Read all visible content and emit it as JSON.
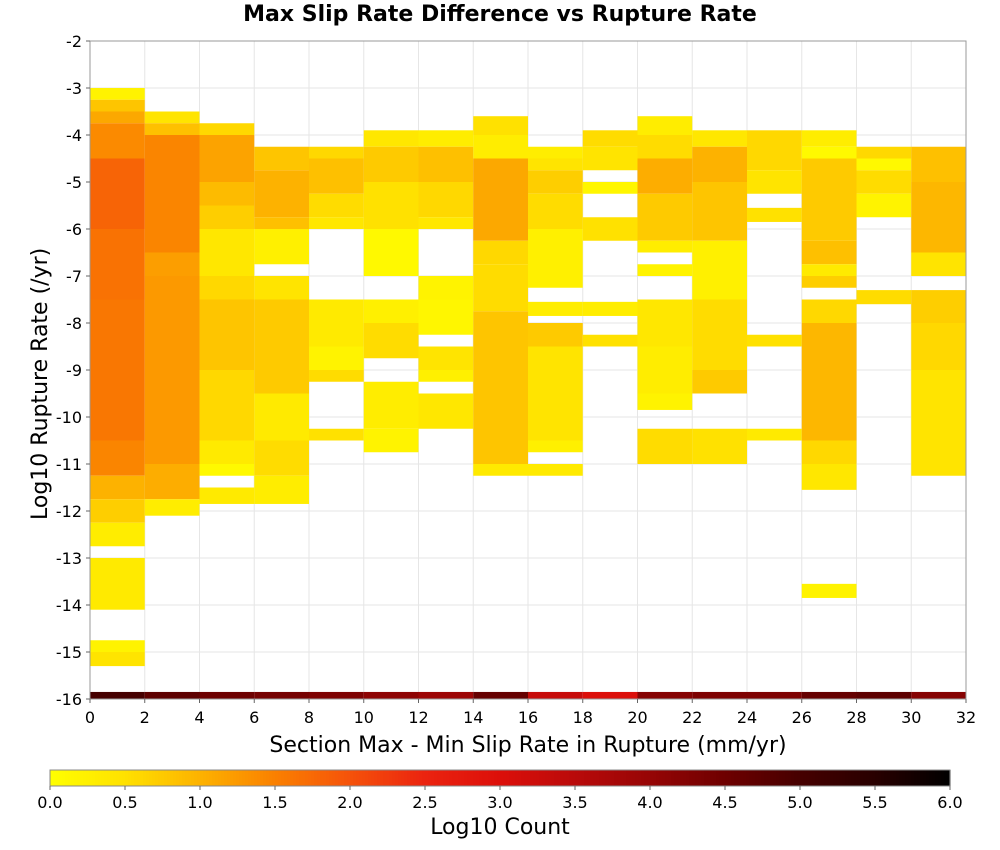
{
  "chart_data": {
    "type": "heatmap",
    "title": "Max Slip Rate Difference vs Rupture Rate",
    "xlabel": "Section Max - Min Slip Rate in Rupture (mm/yr)",
    "ylabel": "Log10 Rupture Rate (/yr)",
    "xlim": [
      0,
      32
    ],
    "ylim": [
      -16,
      -2
    ],
    "x_ticks": [
      "0",
      "2",
      "4",
      "6",
      "8",
      "10",
      "12",
      "14",
      "16",
      "18",
      "20",
      "22",
      "24",
      "26",
      "28",
      "30",
      "32"
    ],
    "y_ticks": [
      "-2",
      "-3",
      "-4",
      "-5",
      "-6",
      "-7",
      "-8",
      "-9",
      "-10",
      "-11",
      "-12",
      "-13",
      "-14",
      "-15",
      "-16"
    ],
    "x_bin_width": 2,
    "y_bin_height": 0.25,
    "colorbar": {
      "label": "Log10 Count",
      "range": [
        0,
        6
      ],
      "ticks": [
        "0.0",
        "0.5",
        "1.0",
        "1.5",
        "2.0",
        "2.5",
        "3.0",
        "3.5",
        "4.0",
        "4.5",
        "5.0",
        "5.5",
        "6.0"
      ]
    },
    "columns": [
      {
        "x": 1,
        "ranges": [
          {
            "y0": -3.25,
            "y1": -3.0,
            "v": 0.2
          },
          {
            "y0": -3.5,
            "y1": -3.25,
            "v": 0.8
          },
          {
            "y0": -3.75,
            "y1": -3.5,
            "v": 1.1
          },
          {
            "y0": -4.5,
            "y1": -3.75,
            "v": 1.4
          },
          {
            "y0": -6.0,
            "y1": -4.5,
            "v": 1.8
          },
          {
            "y0": -7.5,
            "y1": -6.0,
            "v": 1.65
          },
          {
            "y0": -10.5,
            "y1": -7.5,
            "v": 1.6
          },
          {
            "y0": -11.25,
            "y1": -10.5,
            "v": 1.45
          },
          {
            "y0": -11.75,
            "y1": -11.25,
            "v": 1.0
          },
          {
            "y0": -12.25,
            "y1": -11.75,
            "v": 0.7
          },
          {
            "y0": -12.75,
            "y1": -12.25,
            "v": 0.3
          },
          {
            "y0": -14.1,
            "y1": -13.0,
            "v": 0.35
          },
          {
            "y0": -15.0,
            "y1": -14.75,
            "v": 0.2
          },
          {
            "y0": -15.3,
            "y1": -15.0,
            "v": 0.45
          }
        ]
      },
      {
        "x": 3,
        "ranges": [
          {
            "y0": -3.75,
            "y1": -3.5,
            "v": 0.45
          },
          {
            "y0": -4.0,
            "y1": -3.75,
            "v": 0.85
          },
          {
            "y0": -6.5,
            "y1": -4.0,
            "v": 1.45
          },
          {
            "y0": -7.0,
            "y1": -6.5,
            "v": 1.2
          },
          {
            "y0": -11.0,
            "y1": -7.0,
            "v": 1.25
          },
          {
            "y0": -11.75,
            "y1": -11.0,
            "v": 1.05
          },
          {
            "y0": -12.1,
            "y1": -11.75,
            "v": 0.3
          }
        ]
      },
      {
        "x": 5,
        "ranges": [
          {
            "y0": -4.0,
            "y1": -3.75,
            "v": 0.6
          },
          {
            "y0": -5.0,
            "y1": -4.0,
            "v": 1.15
          },
          {
            "y0": -5.5,
            "y1": -5.0,
            "v": 0.9
          },
          {
            "y0": -6.0,
            "y1": -5.5,
            "v": 0.7
          },
          {
            "y0": -7.0,
            "y1": -6.0,
            "v": 0.4
          },
          {
            "y0": -7.5,
            "y1": -7.0,
            "v": 0.6
          },
          {
            "y0": -9.0,
            "y1": -7.5,
            "v": 0.8
          },
          {
            "y0": -10.5,
            "y1": -9.0,
            "v": 0.6
          },
          {
            "y0": -11.0,
            "y1": -10.5,
            "v": 0.35
          },
          {
            "y0": -11.25,
            "y1": -11.0,
            "v": 0.1
          },
          {
            "y0": -11.85,
            "y1": -11.5,
            "v": 0.35
          }
        ]
      },
      {
        "x": 7,
        "ranges": [
          {
            "y0": -4.75,
            "y1": -4.25,
            "v": 0.8
          },
          {
            "y0": -5.75,
            "y1": -4.75,
            "v": 1.0
          },
          {
            "y0": -6.0,
            "y1": -5.75,
            "v": 0.85
          },
          {
            "y0": -6.75,
            "y1": -6.0,
            "v": 0.25
          },
          {
            "y0": -7.5,
            "y1": -7.0,
            "v": 0.45
          },
          {
            "y0": -9.5,
            "y1": -7.5,
            "v": 0.75
          },
          {
            "y0": -10.5,
            "y1": -9.5,
            "v": 0.35
          },
          {
            "y0": -11.25,
            "y1": -10.5,
            "v": 0.55
          },
          {
            "y0": -11.85,
            "y1": -11.25,
            "v": 0.3
          }
        ]
      },
      {
        "x": 9,
        "ranges": [
          {
            "y0": -4.5,
            "y1": -4.25,
            "v": 0.6
          },
          {
            "y0": -5.25,
            "y1": -4.5,
            "v": 0.85
          },
          {
            "y0": -5.75,
            "y1": -5.25,
            "v": 0.55
          },
          {
            "y0": -6.0,
            "y1": -5.75,
            "v": 0.4
          },
          {
            "y0": -8.5,
            "y1": -7.5,
            "v": 0.35
          },
          {
            "y0": -9.0,
            "y1": -8.5,
            "v": 0.2
          },
          {
            "y0": -9.25,
            "y1": -9.0,
            "v": 0.55
          },
          {
            "y0": -10.5,
            "y1": -10.25,
            "v": 0.5
          }
        ]
      },
      {
        "x": 11,
        "ranges": [
          {
            "y0": -4.25,
            "y1": -3.9,
            "v": 0.4
          },
          {
            "y0": -5.0,
            "y1": -4.25,
            "v": 0.75
          },
          {
            "y0": -6.0,
            "y1": -5.0,
            "v": 0.5
          },
          {
            "y0": -7.0,
            "y1": -6.0,
            "v": 0.1
          },
          {
            "y0": -8.0,
            "y1": -7.5,
            "v": 0.25
          },
          {
            "y0": -8.75,
            "y1": -8.0,
            "v": 0.55
          },
          {
            "y0": -10.25,
            "y1": -9.25,
            "v": 0.3
          },
          {
            "y0": -10.75,
            "y1": -10.25,
            "v": 0.2
          }
        ]
      },
      {
        "x": 13,
        "ranges": [
          {
            "y0": -4.25,
            "y1": -3.9,
            "v": 0.3
          },
          {
            "y0": -5.0,
            "y1": -4.25,
            "v": 0.85
          },
          {
            "y0": -5.75,
            "y1": -5.0,
            "v": 0.6
          },
          {
            "y0": -6.0,
            "y1": -5.75,
            "v": 0.4
          },
          {
            "y0": -7.5,
            "y1": -7.0,
            "v": 0.2
          },
          {
            "y0": -8.25,
            "y1": -7.5,
            "v": 0.15
          },
          {
            "y0": -9.0,
            "y1": -8.5,
            "v": 0.45
          },
          {
            "y0": -9.25,
            "y1": -9.0,
            "v": 0.25
          },
          {
            "y0": -10.25,
            "y1": -9.5,
            "v": 0.4
          }
        ]
      },
      {
        "x": 15,
        "ranges": [
          {
            "y0": -4.0,
            "y1": -3.6,
            "v": 0.5
          },
          {
            "y0": -4.5,
            "y1": -4.0,
            "v": 0.3
          },
          {
            "y0": -6.25,
            "y1": -4.5,
            "v": 1.1
          },
          {
            "y0": -6.75,
            "y1": -6.25,
            "v": 0.6
          },
          {
            "y0": -7.75,
            "y1": -6.75,
            "v": 0.55
          },
          {
            "y0": -10.0,
            "y1": -7.75,
            "v": 0.8
          },
          {
            "y0": -11.0,
            "y1": -10.0,
            "v": 0.8
          },
          {
            "y0": -11.25,
            "y1": -11.0,
            "v": 0.35
          }
        ]
      },
      {
        "x": 17,
        "ranges": [
          {
            "y0": -4.5,
            "y1": -4.25,
            "v": 0.3
          },
          {
            "y0": -4.75,
            "y1": -4.5,
            "v": 0.45
          },
          {
            "y0": -5.25,
            "y1": -4.75,
            "v": 0.7
          },
          {
            "y0": -6.0,
            "y1": -5.25,
            "v": 0.55
          },
          {
            "y0": -7.25,
            "y1": -6.0,
            "v": 0.25
          },
          {
            "y0": -7.85,
            "y1": -7.55,
            "v": 0.3
          },
          {
            "y0": -8.5,
            "y1": -8.0,
            "v": 0.75
          },
          {
            "y0": -10.5,
            "y1": -8.5,
            "v": 0.45
          },
          {
            "y0": -10.75,
            "y1": -10.5,
            "v": 0.25
          },
          {
            "y0": -11.25,
            "y1": -11.0,
            "v": 0.35
          }
        ]
      },
      {
        "x": 19,
        "ranges": [
          {
            "y0": -4.25,
            "y1": -3.9,
            "v": 0.55
          },
          {
            "y0": -4.75,
            "y1": -4.25,
            "v": 0.45
          },
          {
            "y0": -5.25,
            "y1": -5.0,
            "v": 0.15
          },
          {
            "y0": -6.25,
            "y1": -5.75,
            "v": 0.5
          },
          {
            "y0": -7.85,
            "y1": -7.55,
            "v": 0.3
          },
          {
            "y0": -8.5,
            "y1": -8.25,
            "v": 0.5
          }
        ]
      },
      {
        "x": 21,
        "ranges": [
          {
            "y0": -4.0,
            "y1": -3.6,
            "v": 0.3
          },
          {
            "y0": -4.5,
            "y1": -4.0,
            "v": 0.55
          },
          {
            "y0": -5.25,
            "y1": -4.5,
            "v": 1.05
          },
          {
            "y0": -6.25,
            "y1": -5.25,
            "v": 0.75
          },
          {
            "y0": -6.5,
            "y1": -6.25,
            "v": 0.3
          },
          {
            "y0": -7.0,
            "y1": -6.75,
            "v": 0.2
          },
          {
            "y0": -8.5,
            "y1": -7.5,
            "v": 0.4
          },
          {
            "y0": -9.5,
            "y1": -8.5,
            "v": 0.3
          },
          {
            "y0": -9.85,
            "y1": -9.5,
            "v": 0.2
          },
          {
            "y0": -11.0,
            "y1": -10.25,
            "v": 0.55
          }
        ]
      },
      {
        "x": 23,
        "ranges": [
          {
            "y0": -4.25,
            "y1": -3.9,
            "v": 0.4
          },
          {
            "y0": -5.0,
            "y1": -4.25,
            "v": 1.0
          },
          {
            "y0": -6.25,
            "y1": -5.0,
            "v": 0.8
          },
          {
            "y0": -7.5,
            "y1": -6.25,
            "v": 0.25
          },
          {
            "y0": -9.0,
            "y1": -7.5,
            "v": 0.55
          },
          {
            "y0": -9.5,
            "y1": -9.0,
            "v": 0.75
          },
          {
            "y0": -11.0,
            "y1": -10.25,
            "v": 0.5
          }
        ]
      },
      {
        "x": 25,
        "ranges": [
          {
            "y0": -4.75,
            "y1": -3.9,
            "v": 0.6
          },
          {
            "y0": -5.25,
            "y1": -4.75,
            "v": 0.45
          },
          {
            "y0": -5.85,
            "y1": -5.55,
            "v": 0.5
          },
          {
            "y0": -8.5,
            "y1": -8.25,
            "v": 0.5
          },
          {
            "y0": -10.5,
            "y1": -10.25,
            "v": 0.35
          }
        ]
      },
      {
        "x": 27,
        "ranges": [
          {
            "y0": -4.25,
            "y1": -3.9,
            "v": 0.3
          },
          {
            "y0": -4.5,
            "y1": -4.25,
            "v": 0.1
          },
          {
            "y0": -6.25,
            "y1": -4.5,
            "v": 0.75
          },
          {
            "y0": -6.75,
            "y1": -6.25,
            "v": 0.85
          },
          {
            "y0": -7.0,
            "y1": -6.75,
            "v": 0.35
          },
          {
            "y0": -7.25,
            "y1": -7.0,
            "v": 0.7
          },
          {
            "y0": -8.0,
            "y1": -7.5,
            "v": 0.6
          },
          {
            "y0": -10.5,
            "y1": -8.0,
            "v": 0.95
          },
          {
            "y0": -11.0,
            "y1": -10.5,
            "v": 0.6
          },
          {
            "y0": -11.55,
            "y1": -11.0,
            "v": 0.4
          },
          {
            "y0": -13.85,
            "y1": -13.55,
            "v": 0.2
          }
        ]
      },
      {
        "x": 29,
        "ranges": [
          {
            "y0": -4.5,
            "y1": -4.25,
            "v": 0.6
          },
          {
            "y0": -4.75,
            "y1": -4.5,
            "v": 0.1
          },
          {
            "y0": -5.25,
            "y1": -4.75,
            "v": 0.55
          },
          {
            "y0": -5.75,
            "y1": -5.25,
            "v": 0.2
          },
          {
            "y0": -7.6,
            "y1": -7.3,
            "v": 0.55
          }
        ]
      },
      {
        "x": 31,
        "ranges": [
          {
            "y0": -5.0,
            "y1": -4.25,
            "v": 0.85
          },
          {
            "y0": -6.5,
            "y1": -5.0,
            "v": 0.95
          },
          {
            "y0": -7.0,
            "y1": -6.5,
            "v": 0.45
          },
          {
            "y0": -8.0,
            "y1": -7.3,
            "v": 0.7
          },
          {
            "y0": -9.0,
            "y1": -8.0,
            "v": 0.6
          },
          {
            "y0": -11.25,
            "y1": -9.0,
            "v": 0.45
          }
        ]
      }
    ],
    "bottom_row": {
      "y0": -16,
      "y1": -15.85,
      "values": [
        5.0,
        4.7,
        4.5,
        4.4,
        4.3,
        4.1,
        3.9,
        4.6,
        3.3,
        3.0,
        4.2,
        4.3,
        4.3,
        4.6,
        4.7,
        4.2
      ]
    }
  }
}
